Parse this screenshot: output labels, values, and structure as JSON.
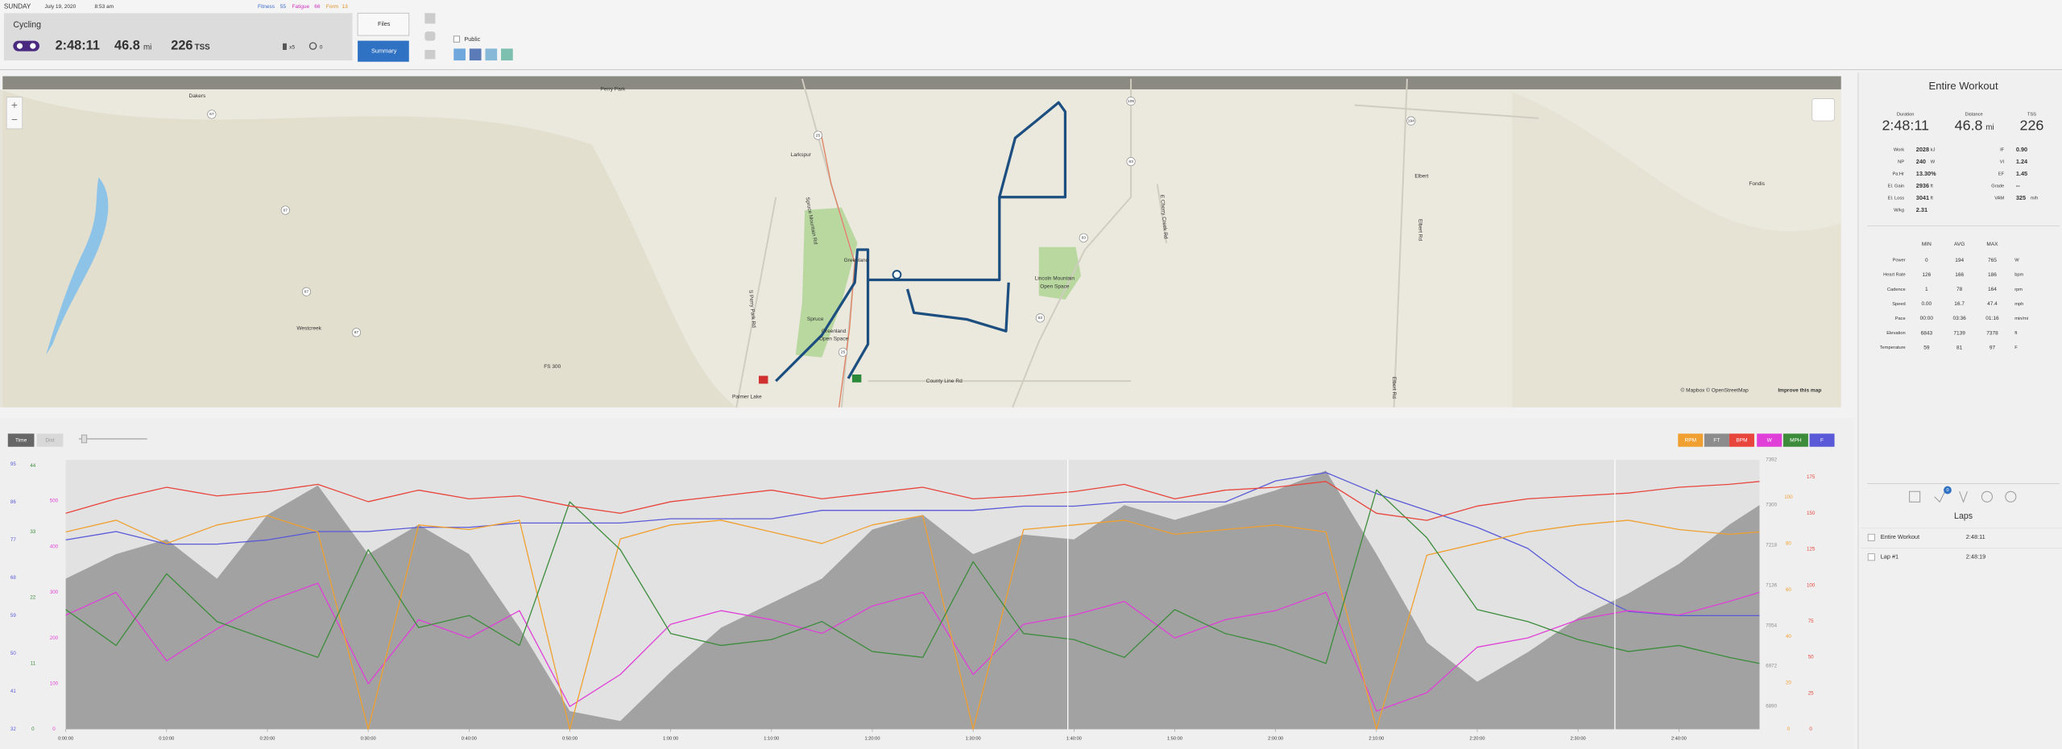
{
  "header": {
    "day": "SUNDAY",
    "date": "July 19, 2020",
    "time": "8:53 am",
    "fitness_label": "Fitness",
    "fitness": "55",
    "fatigue_label": "Fatigue",
    "fatigue": "66",
    "form_label": "Form",
    "form": "13",
    "sport": "Cycling",
    "duration": "2:48:11",
    "distance": "46.8",
    "distance_unit": "mi",
    "tss": "226",
    "tss_unit": "TSS",
    "equipment_count": "x5",
    "comments_count": "0",
    "files_button": "Files",
    "summary_button": "Summary",
    "public_label": "Public"
  },
  "map": {
    "labels": [
      "Perry Park",
      "Dakers",
      "Larkspur",
      "Greenland",
      "Lincoln Mountain",
      "Open Space",
      "Spruce",
      "Greenland",
      "Open Space",
      "Westcreek",
      "Palmer Lake",
      "County Line Rd",
      "Elbert",
      "Fondis",
      "S Perry Park Rd",
      "Spruce Mountain Rd",
      "E Cherry Creek Rd",
      "Elbert Rd",
      "Elbert Rd",
      "FS 300"
    ],
    "shields": [
      "67",
      "67",
      "67",
      "67",
      "105",
      "83",
      "83",
      "83",
      "25",
      "25",
      "194"
    ],
    "attribution": "© Mapbox © OpenStreetMap",
    "improve": "Improve this map"
  },
  "chart": {
    "toolbar": [
      "Time",
      "Dist"
    ],
    "x": [
      0,
      5,
      10,
      15,
      20,
      25,
      30,
      35,
      40,
      45,
      50,
      55,
      60,
      65,
      70,
      75,
      80,
      85,
      90,
      95,
      100,
      105,
      110,
      115,
      120,
      125,
      130,
      135,
      140,
      145,
      150,
      155,
      160,
      165,
      168
    ],
    "xlim": [
      0,
      168
    ],
    "xticks": [
      {
        "value": 0,
        "label": "0:00:00"
      },
      {
        "value": 10,
        "label": "0:10:00"
      },
      {
        "value": 20,
        "label": "0:20:00"
      },
      {
        "value": 30,
        "label": "0:30:00"
      },
      {
        "value": 40,
        "label": "0:40:00"
      },
      {
        "value": 50,
        "label": "0:50:00"
      },
      {
        "value": 60,
        "label": "1:00:00"
      },
      {
        "value": 70,
        "label": "1:10:00"
      },
      {
        "value": 80,
        "label": "1:20:00"
      },
      {
        "value": 90,
        "label": "1:30:00"
      },
      {
        "value": 100,
        "label": "1:40:00"
      },
      {
        "value": 110,
        "label": "1:50:00"
      },
      {
        "value": 120,
        "label": "2:00:00"
      },
      {
        "value": 130,
        "label": "2:10:00"
      },
      {
        "value": 140,
        "label": "2:20:00"
      },
      {
        "value": 150,
        "label": "2:30:00"
      },
      {
        "value": 160,
        "label": "2:40:00"
      }
    ],
    "series": [
      {
        "name": "RPM",
        "color": "#f0a030",
        "ylim": [
          0,
          116
        ],
        "yticks": [
          0,
          20,
          40,
          60,
          80,
          100
        ],
        "values": [
          85,
          90,
          80,
          88,
          92,
          85,
          0,
          88,
          86,
          90,
          0,
          82,
          88,
          90,
          85,
          80,
          88,
          92,
          0,
          86,
          88,
          90,
          84,
          86,
          88,
          85,
          0,
          75,
          80,
          85,
          88,
          90,
          86,
          84,
          85
        ]
      },
      {
        "name": "FT",
        "color": "#8c8c8c",
        "ylim": [
          6843,
          7392
        ],
        "yticks": [
          6890,
          6972,
          7054,
          7136,
          7218,
          7300,
          7392
        ],
        "values": [
          7150,
          7200,
          7230,
          7150,
          7280,
          7340,
          7200,
          7260,
          7200,
          7050,
          6880,
          6860,
          6960,
          7050,
          7100,
          7150,
          7250,
          7280,
          7200,
          7240,
          7230,
          7300,
          7270,
          7300,
          7330,
          7370,
          7200,
          7020,
          6940,
          7000,
          7070,
          7120,
          7180,
          7260,
          7300
        ]
      },
      {
        "name": "BPM",
        "color": "#e8453c",
        "ylim": [
          0,
          187
        ],
        "yticks": [
          0,
          25,
          50,
          75,
          100,
          125,
          150,
          175
        ],
        "values": [
          150,
          160,
          168,
          162,
          165,
          170,
          158,
          166,
          160,
          162,
          155,
          150,
          158,
          162,
          166,
          160,
          164,
          168,
          160,
          162,
          165,
          170,
          160,
          166,
          168,
          172,
          150,
          145,
          155,
          160,
          162,
          164,
          168,
          170,
          172
        ]
      },
      {
        "name": "W",
        "color": "#e040d8",
        "ylim": [
          0,
          590
        ],
        "yticks": [
          0,
          100,
          200,
          300,
          400,
          500
        ],
        "values": [
          250,
          300,
          150,
          220,
          280,
          320,
          100,
          240,
          200,
          260,
          50,
          120,
          230,
          260,
          240,
          210,
          270,
          300,
          120,
          230,
          250,
          280,
          200,
          240,
          260,
          300,
          40,
          80,
          180,
          200,
          240,
          260,
          250,
          280,
          300
        ]
      },
      {
        "name": "MPH",
        "color": "#3c8c3c",
        "ylim": [
          0,
          45
        ],
        "yticks": [
          0,
          11,
          22,
          33,
          44
        ],
        "values": [
          20,
          14,
          26,
          18,
          15,
          12,
          30,
          17,
          19,
          14,
          38,
          30,
          16,
          14,
          15,
          18,
          13,
          12,
          28,
          16,
          15,
          12,
          20,
          16,
          14,
          11,
          40,
          32,
          20,
          18,
          15,
          13,
          14,
          12,
          11
        ]
      },
      {
        "name": "F",
        "color": "#5a5ad8",
        "ylim": [
          32,
          96
        ],
        "yticks": [
          32,
          41,
          50,
          59,
          68,
          77,
          86,
          95
        ],
        "values": [
          77,
          79,
          76,
          76,
          77,
          79,
          79,
          80,
          80,
          81,
          81,
          81,
          82,
          82,
          82,
          84,
          84,
          84,
          84,
          85,
          85,
          86,
          86,
          86,
          91,
          93,
          88,
          84,
          80,
          75,
          66,
          60,
          59,
          59,
          59
        ]
      }
    ]
  },
  "panel": {
    "title": "Entire Workout",
    "top": [
      {
        "label": "Duration",
        "value": "2:48:11"
      },
      {
        "label": "Distance",
        "value": "46.8",
        "unit": "mi"
      },
      {
        "label": "TSS",
        "value": "226"
      }
    ],
    "left": [
      {
        "label": "Work",
        "value": "2028",
        "unit": "kJ"
      },
      {
        "label": "NP",
        "value": "240",
        "unit": "W"
      },
      {
        "label": "Pa:Hr",
        "value": "13.30%"
      },
      {
        "label": "El. Gain",
        "value": "2936",
        "unit": "ft"
      },
      {
        "label": "El. Loss",
        "value": "3041",
        "unit": "ft"
      },
      {
        "label": "W/kg",
        "value": "2.31"
      }
    ],
    "right": [
      {
        "label": "IF",
        "value": "0.90"
      },
      {
        "label": "VI",
        "value": "1.24"
      },
      {
        "label": "EF",
        "value": "1.45"
      },
      {
        "label": "Grade",
        "value": "--"
      },
      {
        "label": "VAM",
        "value": "325",
        "unit": "m/h"
      }
    ],
    "columns": [
      "MIN",
      "AVG",
      "MAX"
    ],
    "rows": [
      [
        "Power",
        "0",
        "194",
        "765",
        "W"
      ],
      [
        "Heart Rate",
        "126",
        "166",
        "186",
        "bpm"
      ],
      [
        "Cadence",
        "1",
        "78",
        "164",
        "rpm"
      ],
      [
        "Speed",
        "0.00",
        "16.7",
        "47.4",
        "mph"
      ],
      [
        "Pace",
        "00:00",
        "03:36",
        "01:16",
        "min/mi"
      ],
      [
        "Elevation",
        "6843",
        "7139",
        "7378",
        "ft"
      ],
      [
        "Temperature",
        "59",
        "81",
        "97",
        "F"
      ]
    ],
    "laps_title": "Laps",
    "badge": "0",
    "laps": [
      [
        "Entire Workout",
        "2:48:11"
      ],
      [
        "Lap #1",
        "2:48:19"
      ]
    ]
  }
}
